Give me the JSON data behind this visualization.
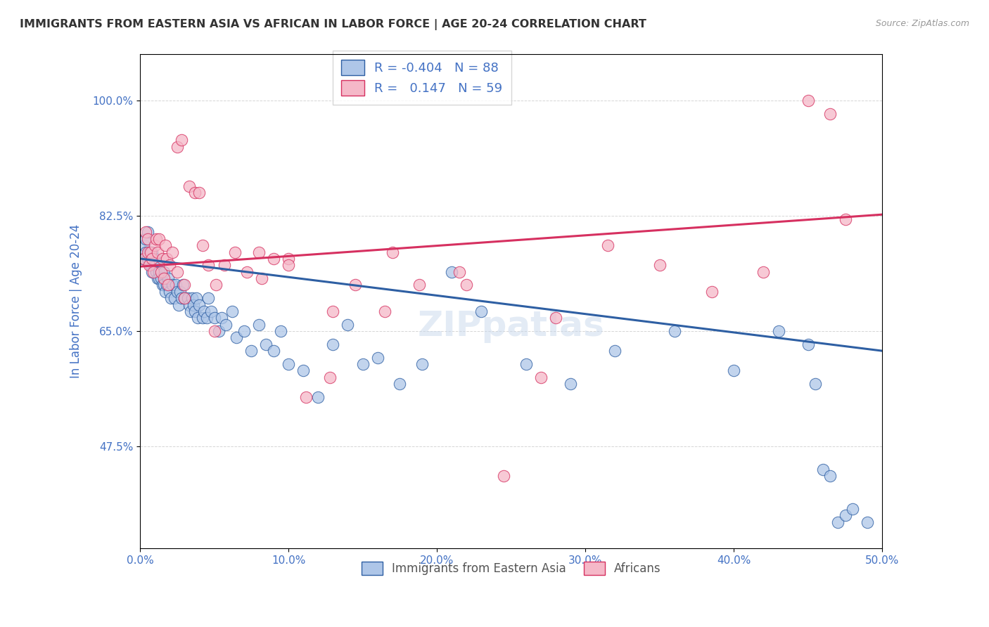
{
  "title": "IMMIGRANTS FROM EASTERN ASIA VS AFRICAN IN LABOR FORCE | AGE 20-24 CORRELATION CHART",
  "source": "Source: ZipAtlas.com",
  "ylabel": "In Labor Force | Age 20-24",
  "xlim": [
    0.0,
    0.5
  ],
  "ylim": [
    0.32,
    1.07
  ],
  "xticks": [
    0.0,
    0.1,
    0.2,
    0.3,
    0.4,
    0.5
  ],
  "xtick_labels": [
    "0.0%",
    "10.0%",
    "20.0%",
    "30.0%",
    "40.0%",
    "50.0%"
  ],
  "ytick_positions": [
    0.475,
    0.65,
    0.825,
    1.0
  ],
  "ytick_labels": [
    "47.5%",
    "65.0%",
    "82.5%",
    "100.0%"
  ],
  "blue_R": -0.404,
  "blue_N": 88,
  "pink_R": 0.147,
  "pink_N": 59,
  "legend_label_blue": "Immigrants from Eastern Asia",
  "legend_label_pink": "Africans",
  "blue_color": "#aec6e8",
  "blue_line_color": "#2e5fa3",
  "pink_color": "#f5b8c8",
  "pink_line_color": "#d63060",
  "background_color": "#ffffff",
  "grid_color": "#cccccc",
  "title_color": "#333333",
  "axis_label_color": "#4472c4",
  "tick_label_color": "#4472c4",
  "blue_trend_x": [
    0.0,
    0.5
  ],
  "blue_trend_y": [
    0.76,
    0.62
  ],
  "pink_trend_x": [
    0.0,
    0.5
  ],
  "pink_trend_y": [
    0.748,
    0.827
  ],
  "blue_scatter_x": [
    0.002,
    0.003,
    0.004,
    0.004,
    0.005,
    0.005,
    0.006,
    0.007,
    0.007,
    0.008,
    0.008,
    0.009,
    0.01,
    0.01,
    0.011,
    0.011,
    0.012,
    0.013,
    0.013,
    0.014,
    0.015,
    0.016,
    0.016,
    0.017,
    0.018,
    0.019,
    0.02,
    0.021,
    0.022,
    0.023,
    0.024,
    0.025,
    0.026,
    0.027,
    0.028,
    0.029,
    0.03,
    0.032,
    0.033,
    0.034,
    0.035,
    0.036,
    0.037,
    0.038,
    0.039,
    0.04,
    0.042,
    0.043,
    0.045,
    0.046,
    0.048,
    0.05,
    0.053,
    0.055,
    0.058,
    0.062,
    0.065,
    0.07,
    0.075,
    0.08,
    0.085,
    0.09,
    0.095,
    0.1,
    0.11,
    0.12,
    0.13,
    0.14,
    0.15,
    0.16,
    0.175,
    0.19,
    0.21,
    0.23,
    0.26,
    0.29,
    0.32,
    0.36,
    0.4,
    0.43,
    0.45,
    0.455,
    0.46,
    0.465,
    0.47,
    0.475,
    0.48,
    0.49
  ],
  "blue_scatter_y": [
    0.76,
    0.78,
    0.79,
    0.77,
    0.8,
    0.76,
    0.77,
    0.76,
    0.75,
    0.77,
    0.74,
    0.76,
    0.76,
    0.75,
    0.75,
    0.74,
    0.73,
    0.74,
    0.73,
    0.73,
    0.72,
    0.72,
    0.74,
    0.71,
    0.72,
    0.73,
    0.71,
    0.7,
    0.72,
    0.7,
    0.72,
    0.71,
    0.69,
    0.71,
    0.7,
    0.72,
    0.7,
    0.7,
    0.69,
    0.68,
    0.7,
    0.69,
    0.68,
    0.7,
    0.67,
    0.69,
    0.67,
    0.68,
    0.67,
    0.7,
    0.68,
    0.67,
    0.65,
    0.67,
    0.66,
    0.68,
    0.64,
    0.65,
    0.62,
    0.66,
    0.63,
    0.62,
    0.65,
    0.6,
    0.59,
    0.55,
    0.63,
    0.66,
    0.6,
    0.61,
    0.57,
    0.6,
    0.74,
    0.68,
    0.6,
    0.57,
    0.62,
    0.65,
    0.59,
    0.65,
    0.63,
    0.57,
    0.44,
    0.43,
    0.36,
    0.37,
    0.38,
    0.36
  ],
  "pink_scatter_x": [
    0.003,
    0.004,
    0.005,
    0.005,
    0.006,
    0.007,
    0.008,
    0.009,
    0.01,
    0.011,
    0.012,
    0.013,
    0.014,
    0.015,
    0.016,
    0.017,
    0.018,
    0.019,
    0.02,
    0.022,
    0.025,
    0.028,
    0.03,
    0.033,
    0.037,
    0.042,
    0.046,
    0.051,
    0.057,
    0.064,
    0.072,
    0.082,
    0.09,
    0.1,
    0.112,
    0.128,
    0.145,
    0.165,
    0.188,
    0.215,
    0.245,
    0.28,
    0.315,
    0.35,
    0.385,
    0.42,
    0.45,
    0.465,
    0.475,
    0.025,
    0.03,
    0.04,
    0.05,
    0.08,
    0.1,
    0.13,
    0.17,
    0.22,
    0.27
  ],
  "pink_scatter_y": [
    0.76,
    0.8,
    0.77,
    0.79,
    0.75,
    0.77,
    0.76,
    0.74,
    0.78,
    0.79,
    0.77,
    0.79,
    0.74,
    0.76,
    0.73,
    0.78,
    0.76,
    0.72,
    0.75,
    0.77,
    0.93,
    0.94,
    0.7,
    0.87,
    0.86,
    0.78,
    0.75,
    0.72,
    0.75,
    0.77,
    0.74,
    0.73,
    0.76,
    0.76,
    0.55,
    0.58,
    0.72,
    0.68,
    0.72,
    0.74,
    0.43,
    0.67,
    0.78,
    0.75,
    0.71,
    0.74,
    1.0,
    0.98,
    0.82,
    0.74,
    0.72,
    0.86,
    0.65,
    0.77,
    0.75,
    0.68,
    0.77,
    0.72,
    0.58
  ]
}
